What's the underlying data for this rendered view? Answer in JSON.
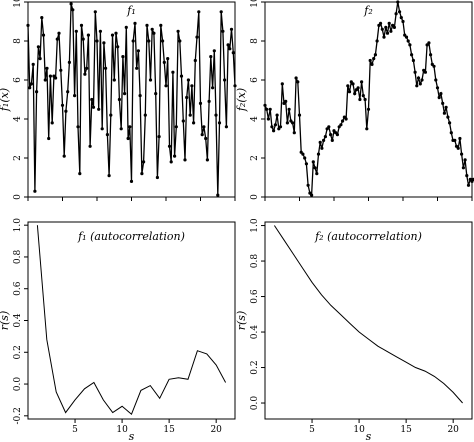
{
  "chart_data": [
    {
      "type": "line",
      "title": "f₁",
      "ylabel": "f₁(x)",
      "xlabel": "",
      "xlim": [
        0,
        120
      ],
      "ylim": [
        0,
        10
      ],
      "yticks": [
        0,
        2,
        4,
        6,
        8,
        10
      ],
      "xtick_labels_shown": false,
      "grid": false,
      "markers": true,
      "y": [
        8.8,
        5.6,
        5.8,
        6.8,
        0.3,
        5.4,
        7.7,
        7.1,
        9.2,
        8.3,
        6.0,
        6.6,
        3.0,
        6.2,
        3.8,
        6.2,
        6.1,
        8.1,
        8.4,
        6.5,
        4.7,
        2.1,
        4.4,
        5.4,
        6.9,
        9.9,
        9.6,
        5.2,
        8.5,
        3.6,
        1.2,
        8.8,
        8.1,
        6.3,
        6.6,
        8.3,
        2.6,
        5.0,
        4.6,
        9.5,
        8.0,
        4.5,
        8.5,
        3.5,
        7.9,
        6.6,
        3.2,
        1.1,
        4.2,
        8.3,
        6.0,
        8.4,
        7.7,
        5.0,
        3.5,
        7.2,
        5.3,
        8.7,
        3.0,
        3.6,
        0.8,
        8.0,
        8.9,
        6.6,
        7.5,
        5.2,
        1.2,
        1.8,
        4.2,
        8.8,
        8.0,
        6.0,
        8.6,
        8.4,
        5.3,
        1.0,
        3.1,
        8.8,
        8.0,
        6.9,
        5.7,
        7.1,
        2.6,
        1.8,
        6.4,
        2.1,
        3.6,
        8.5,
        8.0,
        6.2,
        3.9,
        1.9,
        5.1,
        6.0,
        4.2,
        5.7,
        3.8,
        7.0,
        8.2,
        9.5,
        4.8,
        3.2,
        3.6,
        3.0,
        1.9,
        4.9,
        7.2,
        5.6,
        7.5,
        4.2,
        0.1,
        3.8,
        9.5,
        8.5,
        6.0,
        3.6,
        7.8,
        7.6,
        8.6,
        7.4,
        5.7
      ]
    },
    {
      "type": "line",
      "title": "f₂",
      "ylabel": "f₂(x)",
      "xlabel": "",
      "xlim": [
        0,
        120
      ],
      "ylim": [
        0,
        10
      ],
      "yticks": [
        0,
        2,
        4,
        6,
        8,
        10
      ],
      "xtick_labels_shown": false,
      "grid": false,
      "markers": true,
      "y": [
        4.7,
        4.5,
        4.0,
        4.5,
        3.6,
        3.4,
        3.7,
        4.2,
        3.5,
        3.6,
        5.8,
        4.8,
        4.9,
        3.8,
        4.5,
        3.9,
        3.8,
        3.3,
        6.1,
        5.9,
        4.2,
        2.3,
        2.2,
        2.0,
        1.7,
        0.6,
        0.2,
        0.1,
        1.8,
        1.5,
        1.2,
        2.2,
        2.8,
        2.5,
        2.9,
        3.1,
        3.5,
        3.6,
        3.2,
        2.9,
        3.4,
        3.3,
        3.2,
        3.6,
        3.7,
        3.9,
        4.1,
        4.0,
        5.7,
        5.4,
        5.9,
        5.8,
        5.3,
        5.5,
        5.6,
        5.0,
        5.9,
        5.2,
        5.0,
        3.5,
        4.5,
        7.0,
        6.8,
        7.1,
        7.3,
        8.0,
        8.8,
        8.9,
        8.6,
        8.2,
        8.7,
        8.4,
        8.9,
        8.5,
        8.8,
        8.7,
        9.4,
        10.0,
        9.5,
        9.2,
        9.0,
        8.3,
        8.2,
        8.0,
        7.8,
        7.3,
        7.0,
        6.4,
        5.7,
        6.1,
        5.8,
        6.0,
        6.5,
        6.4,
        7.8,
        7.9,
        7.3,
        6.8,
        6.7,
        6.0,
        5.6,
        5.1,
        5.3,
        4.8,
        4.3,
        4.6,
        4.1,
        3.8,
        3.3,
        2.9,
        2.9,
        2.6,
        2.5,
        3.0,
        2.2,
        1.5,
        1.9,
        1.1,
        0.6,
        0.9,
        0.8,
        0.9
      ]
    },
    {
      "type": "line",
      "title": "f₁ (autocorrelation)",
      "xlabel": "s",
      "ylabel": "r(s)",
      "xlim": [
        0,
        22
      ],
      "ylim": [
        -0.22,
        1.02
      ],
      "xticks": [
        5,
        10,
        15,
        20
      ],
      "yticks": [
        -0.2,
        0.0,
        0.2,
        0.4,
        0.6,
        0.8,
        1.0
      ],
      "grid": false,
      "markers": false,
      "x": [
        1,
        2,
        3,
        4,
        5,
        6,
        7,
        8,
        9,
        10,
        11,
        12,
        13,
        14,
        15,
        16,
        17,
        18,
        19,
        20,
        21
      ],
      "y": [
        1.0,
        0.28,
        -0.05,
        -0.18,
        -0.1,
        -0.03,
        0.01,
        -0.1,
        -0.18,
        -0.14,
        -0.19,
        -0.04,
        -0.01,
        -0.09,
        0.03,
        0.04,
        0.03,
        0.21,
        0.19,
        0.12,
        0.01
      ]
    },
    {
      "type": "line",
      "title": "f₂ (autocorrelation)",
      "xlabel": "s",
      "ylabel": "r(s)",
      "xlim": [
        0,
        22
      ],
      "ylim": [
        -0.09,
        1.02
      ],
      "xticks": [
        5,
        10,
        15,
        20
      ],
      "yticks": [
        0.0,
        0.2,
        0.4,
        0.6,
        0.8,
        1.0
      ],
      "grid": false,
      "markers": false,
      "x": [
        1,
        2,
        3,
        4,
        5,
        6,
        7,
        8,
        9,
        10,
        11,
        12,
        13,
        14,
        15,
        16,
        17,
        18,
        19,
        20,
        21
      ],
      "y": [
        1.0,
        0.92,
        0.84,
        0.76,
        0.68,
        0.61,
        0.55,
        0.5,
        0.45,
        0.4,
        0.36,
        0.32,
        0.29,
        0.26,
        0.23,
        0.2,
        0.18,
        0.15,
        0.11,
        0.06,
        0.0
      ]
    }
  ]
}
